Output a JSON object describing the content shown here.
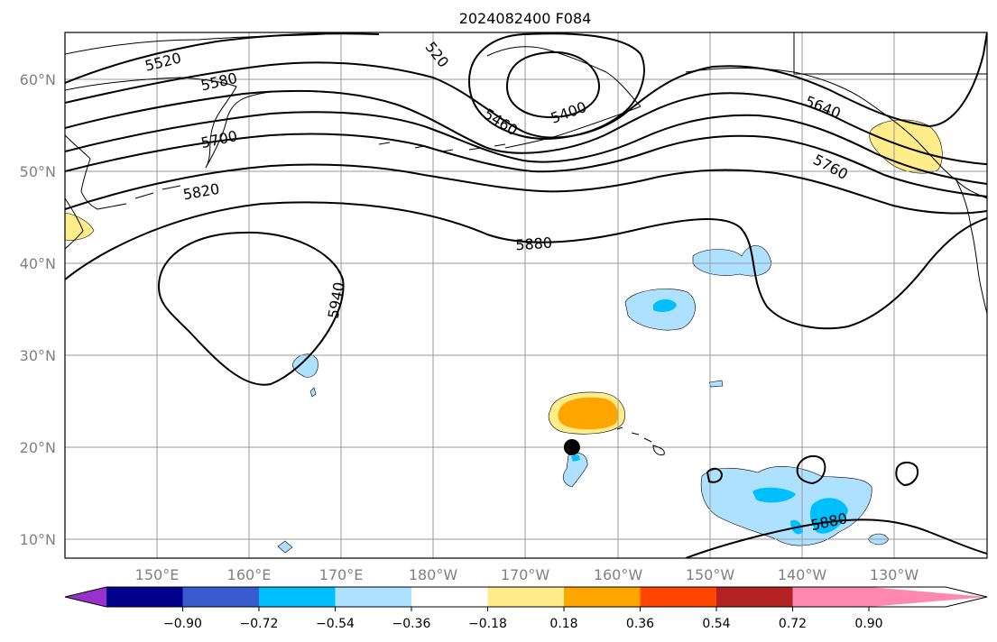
{
  "title": "2024082400 F084",
  "lon_labels": [
    "150°E",
    "160°E",
    "170°E",
    "180°W",
    "170°W",
    "160°W",
    "150°W",
    "140°W",
    "130°W"
  ],
  "lat_labels": [
    "60°N",
    "50°N",
    "40°N",
    "30°N",
    "20°N",
    "10°N"
  ],
  "contour_labels": [
    "5520",
    "5580",
    "5700",
    "5820",
    "5880",
    "5940",
    "5460",
    "5400",
    "5640",
    "5760",
    "5880",
    "520"
  ],
  "colorbar": {
    "ticks": [
      "−0.90",
      "−0.72",
      "−0.54",
      "−0.36",
      "−0.18",
      "0.18",
      "0.36",
      "0.54",
      "0.72",
      "0.90"
    ],
    "colors": [
      "#9932cc",
      "#00008b",
      "#3a5bcd",
      "#00bfff",
      "#aee0ff",
      "#ffffff",
      "#ffec8b",
      "#ffa500",
      "#ff4500",
      "#b22222",
      "#ff88b0"
    ]
  },
  "marker": {
    "label": "",
    "lon": -165,
    "lat": 20
  }
}
